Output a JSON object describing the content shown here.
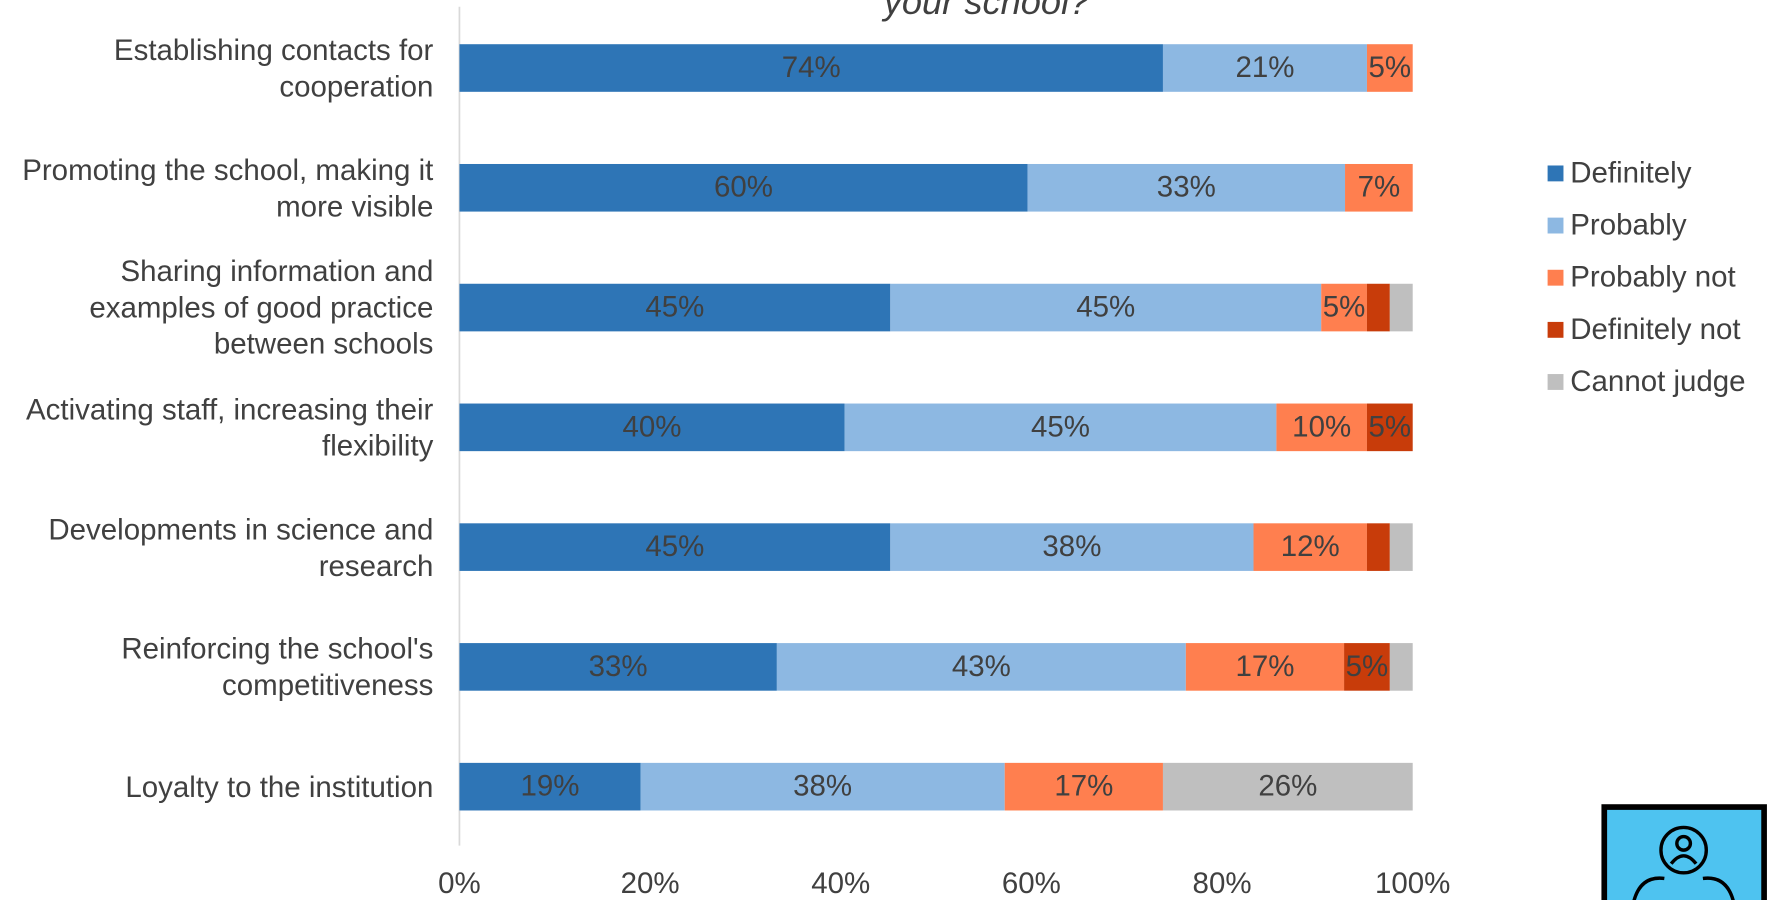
{
  "chart_data": {
    "type": "stacked-bar-horizontal",
    "title": "your school?",
    "categories": [
      "Establishing contacts for cooperation",
      "Promoting the school, making it more visible",
      "Sharing information and examples of good practice between schools",
      "Activating staff, increasing their flexibility",
      "Developments in science and research",
      "Reinforcing the school's competitiveness",
      "Loyalty to the institution"
    ],
    "series": [
      {
        "name": "Definitely",
        "color": "#2e75b6",
        "values": [
          73.8,
          59.6,
          45.2,
          40.4,
          45.2,
          33.3,
          19.0
        ],
        "value_labels": [
          "74%",
          "60%",
          "45%",
          "40%",
          "45%",
          "33%",
          "19%"
        ]
      },
      {
        "name": "Probably",
        "color": "#8db8e2",
        "values": [
          21.4,
          33.3,
          45.2,
          45.3,
          38.1,
          42.9,
          38.2
        ],
        "value_labels": [
          "21%",
          "33%",
          "45%",
          "45%",
          "38%",
          "43%",
          "38%"
        ]
      },
      {
        "name": "Probably not",
        "color": "#ff7f4f",
        "values": [
          4.8,
          7.1,
          4.8,
          9.5,
          11.9,
          16.6,
          16.6
        ],
        "value_labels": [
          "5%",
          "7%",
          "5%",
          "10%",
          "12%",
          "17%",
          "17%"
        ]
      },
      {
        "name": "Definitely not",
        "color": "#c83c0a",
        "values": [
          0,
          0,
          2.4,
          4.8,
          2.4,
          4.8,
          0
        ],
        "value_labels": [
          null,
          null,
          null,
          "5%",
          null,
          "5%",
          null
        ]
      },
      {
        "name": "Cannot judge",
        "color": "#bfbfbf",
        "values": [
          0,
          0,
          2.4,
          0,
          2.4,
          2.4,
          26.2
        ],
        "value_labels": [
          null,
          null,
          null,
          null,
          null,
          null,
          "26%"
        ]
      }
    ],
    "xlim": [
      0,
      100
    ],
    "xticks": [
      {
        "value": 0,
        "label": "0%"
      },
      {
        "value": 20,
        "label": "20%"
      },
      {
        "value": 40,
        "label": "40%"
      },
      {
        "value": 60,
        "label": "60%"
      },
      {
        "value": 80,
        "label": "80%"
      },
      {
        "value": 100,
        "label": "100%"
      }
    ],
    "legend": "right"
  }
}
